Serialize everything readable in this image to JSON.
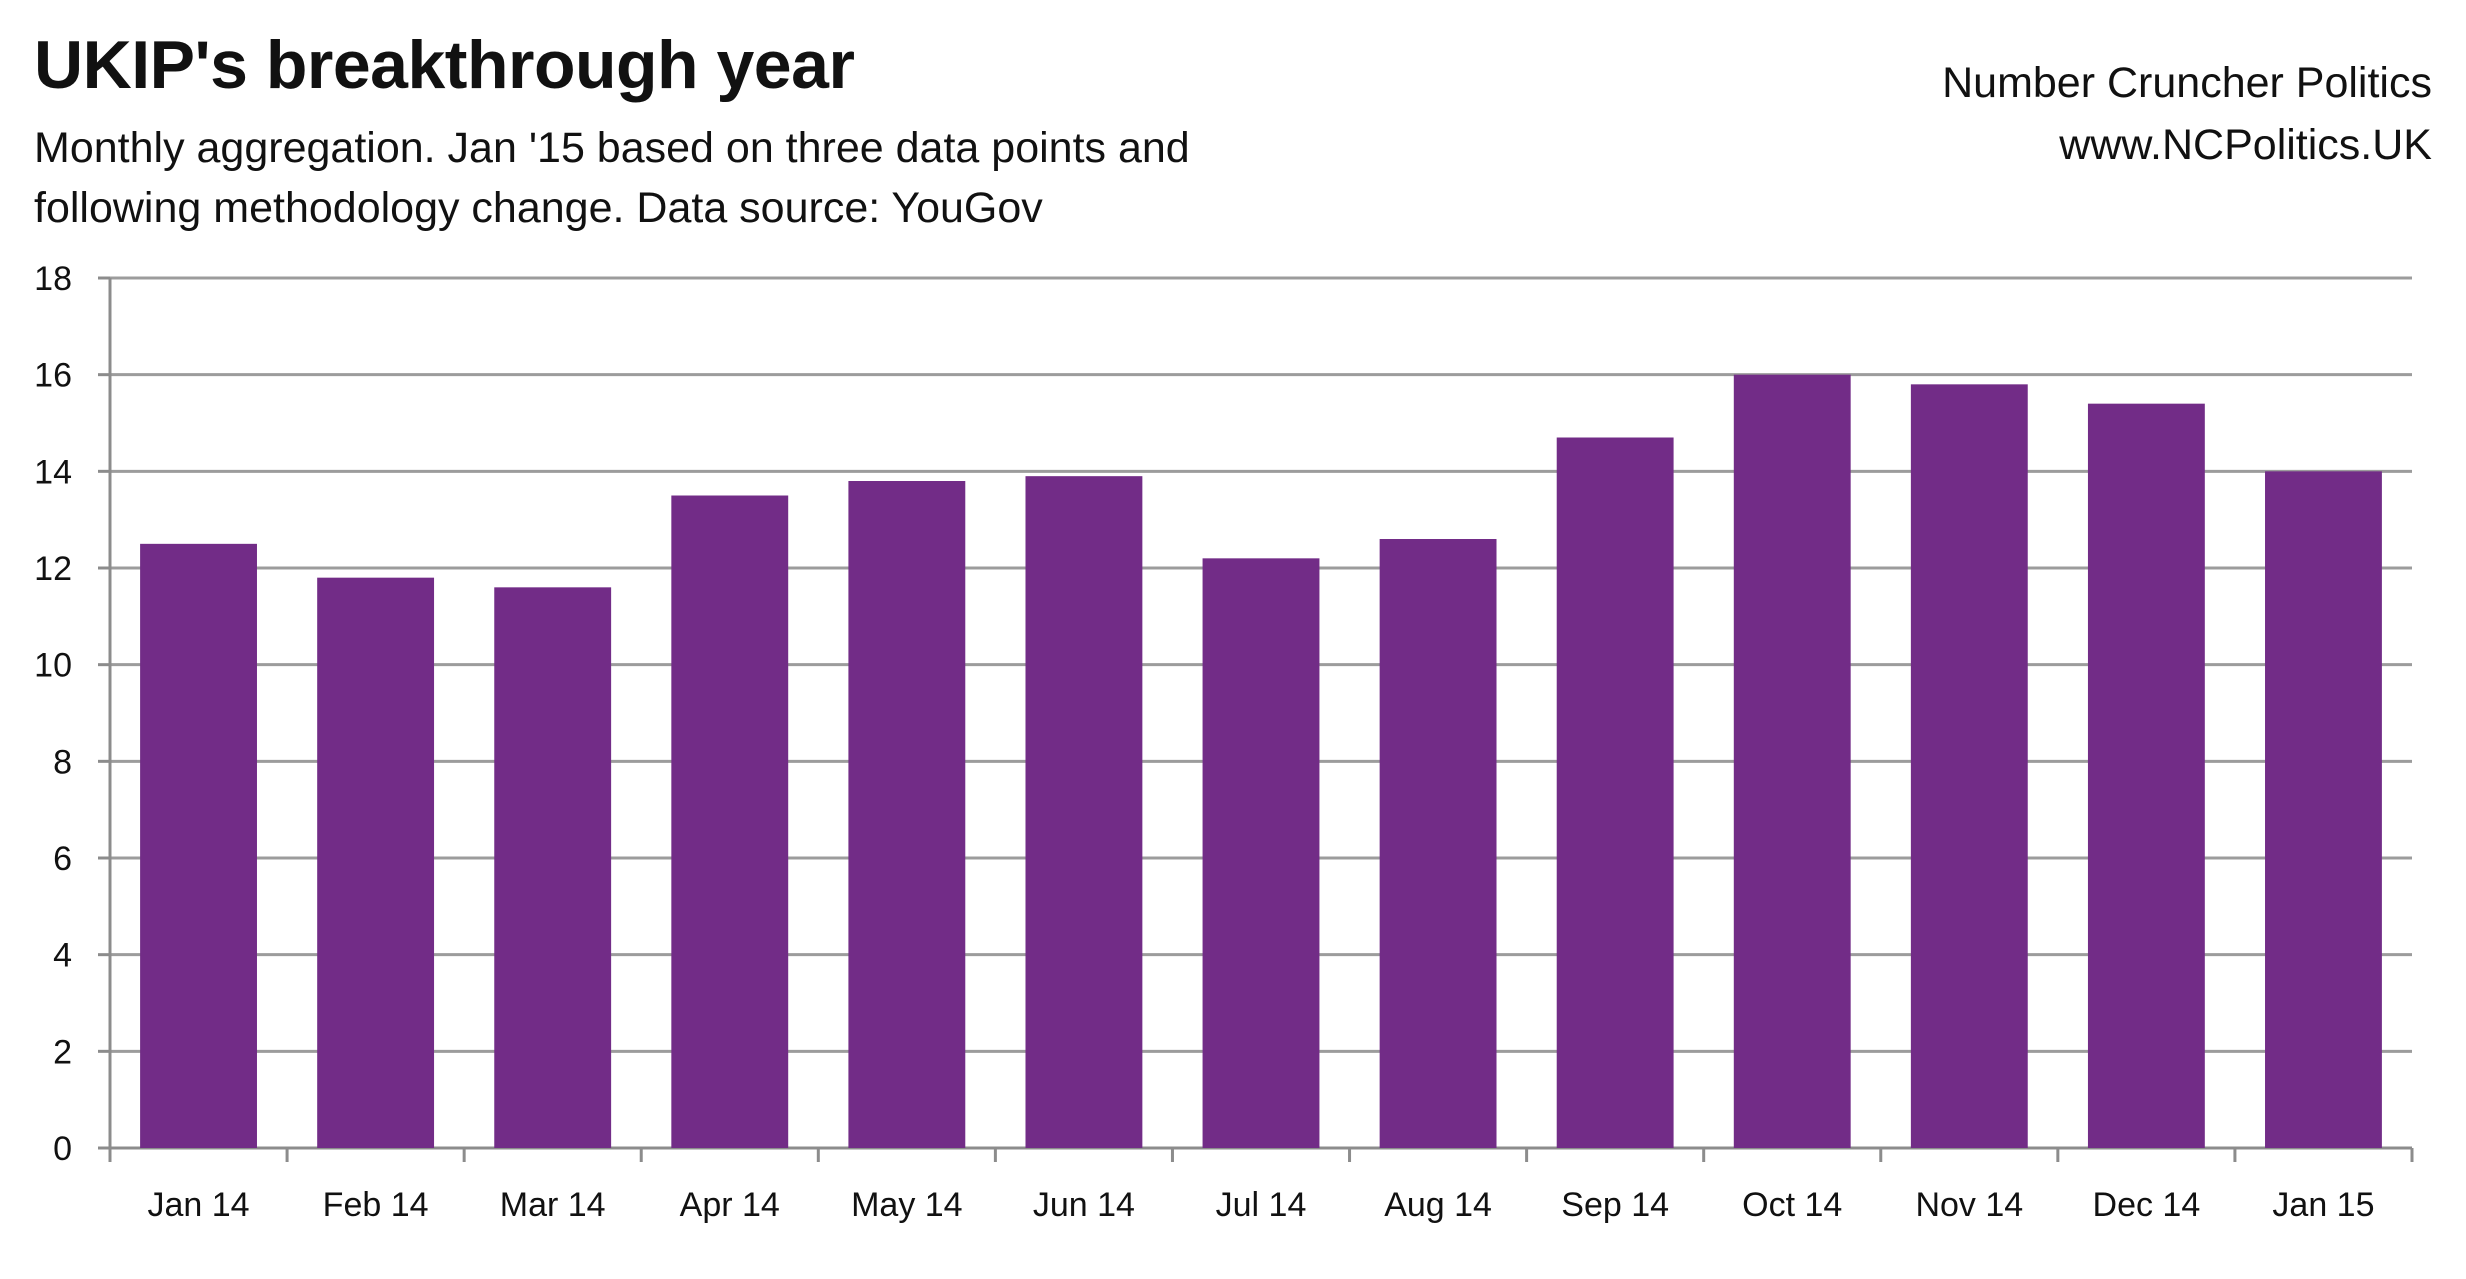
{
  "header": {
    "title": "UKIP's breakthrough year",
    "subtitle_line1": "Monthly aggregation. Jan '15 based on three data points and",
    "subtitle_line2": "following methodology change. Data source: YouGov"
  },
  "brand": {
    "name": "Number Cruncher Politics",
    "url": "www.NCPolitics.UK"
  },
  "colors": {
    "bar": "#722c87",
    "grid": "#9c9c9c",
    "axis": "#8c8c8c"
  },
  "chart_data": {
    "type": "bar",
    "title": "UKIP's breakthrough year",
    "xlabel": "",
    "ylabel": "",
    "categories": [
      "Jan 14",
      "Feb 14",
      "Mar 14",
      "Apr 14",
      "May 14",
      "Jun 14",
      "Jul 14",
      "Aug 14",
      "Sep 14",
      "Oct 14",
      "Nov 14",
      "Dec 14",
      "Jan 15"
    ],
    "values": [
      12.5,
      11.8,
      11.6,
      13.5,
      13.8,
      13.9,
      12.2,
      12.6,
      14.7,
      16.0,
      15.8,
      15.4,
      14.0
    ],
    "ylim": [
      0,
      18
    ],
    "yticks": [
      0,
      2,
      4,
      6,
      8,
      10,
      12,
      14,
      16,
      18
    ],
    "grid": true,
    "legend": "none"
  }
}
